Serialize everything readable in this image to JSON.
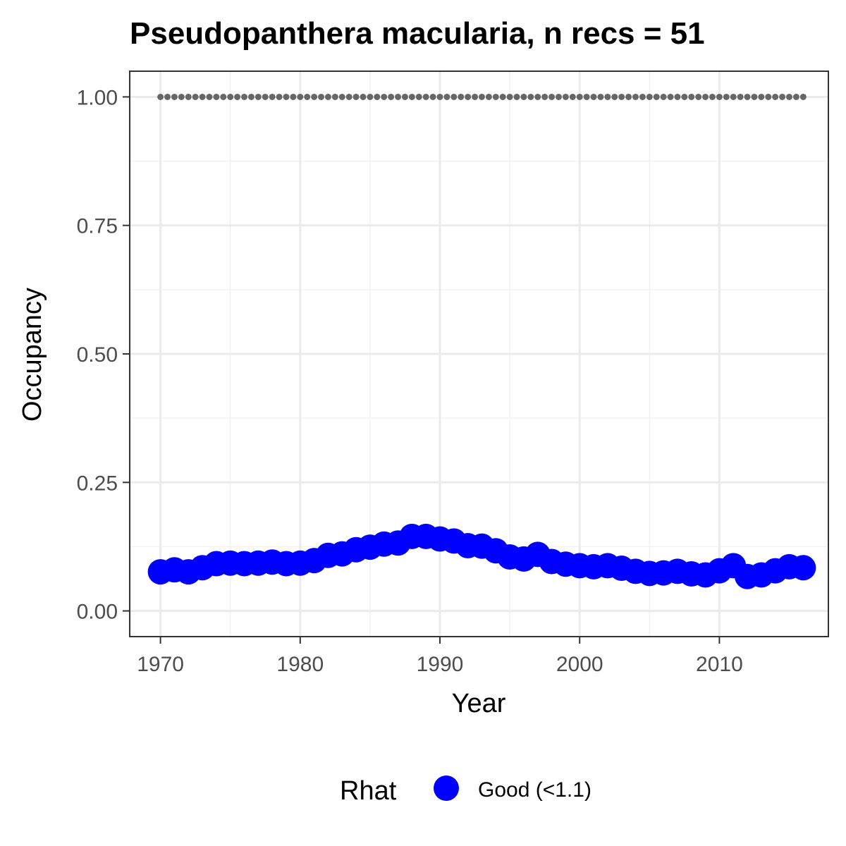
{
  "chart_data": {
    "type": "scatter",
    "title": "Pseudopanthera macularia, n recs = 51",
    "xlabel": "Year",
    "ylabel": "Occupancy",
    "xlim": [
      1967.8,
      2017.8
    ],
    "ylim": [
      -0.05,
      1.05
    ],
    "x_ticks": [
      1970,
      1980,
      1990,
      2000,
      2010
    ],
    "y_ticks": [
      0.0,
      0.25,
      0.5,
      0.75,
      1.0
    ],
    "x_tick_labels": [
      "1970",
      "1980",
      "1990",
      "2000",
      "2010"
    ],
    "y_tick_labels": [
      "0.00",
      "0.25",
      "0.50",
      "0.75",
      "1.00"
    ],
    "grid": true,
    "legend_position": "bottom",
    "legend_title": "Rhat",
    "series": [
      {
        "name": "Good (<1.1)",
        "color": "#0000ff",
        "x": [
          1970,
          1971,
          1972,
          1973,
          1974,
          1975,
          1976,
          1977,
          1978,
          1979,
          1980,
          1981,
          1982,
          1983,
          1984,
          1985,
          1986,
          1987,
          1988,
          1989,
          1990,
          1991,
          1992,
          1993,
          1994,
          1995,
          1996,
          1997,
          1998,
          1999,
          2000,
          2001,
          2002,
          2003,
          2004,
          2005,
          2006,
          2007,
          2008,
          2009,
          2010,
          2011,
          2012,
          2013,
          2014,
          2015,
          2016
        ],
        "y": [
          0.076,
          0.08,
          0.076,
          0.084,
          0.092,
          0.093,
          0.092,
          0.093,
          0.095,
          0.092,
          0.093,
          0.098,
          0.108,
          0.111,
          0.119,
          0.124,
          0.13,
          0.132,
          0.145,
          0.145,
          0.14,
          0.136,
          0.127,
          0.126,
          0.117,
          0.105,
          0.101,
          0.11,
          0.096,
          0.091,
          0.088,
          0.086,
          0.088,
          0.083,
          0.077,
          0.073,
          0.074,
          0.077,
          0.072,
          0.07,
          0.078,
          0.088,
          0.067,
          0.07,
          0.078,
          0.086,
          0.084
        ]
      },
      {
        "name": "",
        "color": "#666666",
        "style": "dotted",
        "x": [
          1970,
          1971,
          1972,
          1973,
          1974,
          1975,
          1976,
          1977,
          1978,
          1979,
          1980,
          1981,
          1982,
          1983,
          1984,
          1985,
          1986,
          1987,
          1988,
          1989,
          1990,
          1991,
          1992,
          1993,
          1994,
          1995,
          1996,
          1997,
          1998,
          1999,
          2000,
          2001,
          2002,
          2003,
          2004,
          2005,
          2006,
          2007,
          2008,
          2009,
          2010,
          2011,
          2012,
          2013,
          2014,
          2015,
          2016
        ],
        "y": [
          1,
          1,
          1,
          1,
          1,
          1,
          1,
          1,
          1,
          1,
          1,
          1,
          1,
          1,
          1,
          1,
          1,
          1,
          1,
          1,
          1,
          1,
          1,
          1,
          1,
          1,
          1,
          1,
          1,
          1,
          1,
          1,
          1,
          1,
          1,
          1,
          1,
          1,
          1,
          1,
          1,
          1,
          1,
          1,
          1,
          1,
          1
        ]
      }
    ],
    "legend_entries": [
      {
        "label": "Good (<1.1)",
        "color": "#0000ff"
      }
    ]
  }
}
